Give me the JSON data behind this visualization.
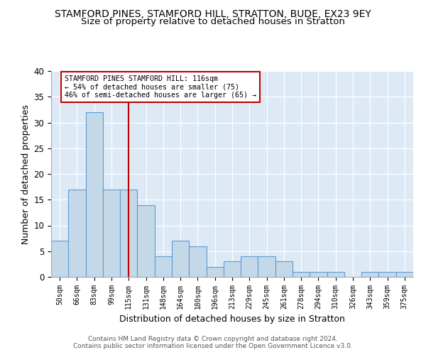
{
  "title1": "STAMFORD PINES, STAMFORD HILL, STRATTON, BUDE, EX23 9EY",
  "title2": "Size of property relative to detached houses in Stratton",
  "xlabel": "Distribution of detached houses by size in Stratton",
  "ylabel": "Number of detached properties",
  "categories": [
    "50sqm",
    "66sqm",
    "83sqm",
    "99sqm",
    "115sqm",
    "131sqm",
    "148sqm",
    "164sqm",
    "180sqm",
    "196sqm",
    "213sqm",
    "229sqm",
    "245sqm",
    "261sqm",
    "278sqm",
    "294sqm",
    "310sqm",
    "326sqm",
    "343sqm",
    "359sqm",
    "375sqm"
  ],
  "values": [
    7,
    17,
    32,
    17,
    17,
    14,
    4,
    7,
    6,
    2,
    3,
    4,
    4,
    3,
    1,
    1,
    1,
    0,
    1,
    1,
    1
  ],
  "bar_color": "#c5d8e8",
  "bar_edge_color": "#5b9bd5",
  "vline_x": 4,
  "vline_color": "#c00000",
  "annotation_text": "STAMFORD PINES STAMFORD HILL: 116sqm\n← 54% of detached houses are smaller (75)\n46% of semi-detached houses are larger (65) →",
  "annotation_box_color": "#ffffff",
  "annotation_box_edge": "#c00000",
  "ylim": [
    0,
    40
  ],
  "yticks": [
    0,
    5,
    10,
    15,
    20,
    25,
    30,
    35,
    40
  ],
  "footer1": "Contains HM Land Registry data © Crown copyright and database right 2024.",
  "footer2": "Contains public sector information licensed under the Open Government Licence v3.0.",
  "bg_color": "#ddeaf6",
  "fig_bg": "#ffffff",
  "title1_fontsize": 10,
  "title2_fontsize": 9.5,
  "xlabel_fontsize": 9,
  "ylabel_fontsize": 9
}
